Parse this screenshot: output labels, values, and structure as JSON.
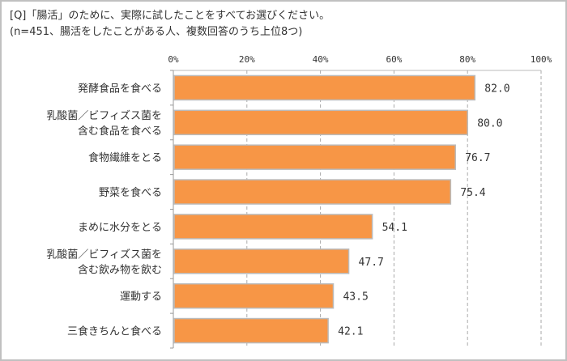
{
  "chart_data": {
    "type": "bar",
    "orientation": "horizontal",
    "title": "[Q]「腸活」のために、実際に試したことをすべてお選びください。",
    "subtitle": "(n=451、腸活をしたことがある人、複数回答のうち上位8つ)",
    "categories": [
      [
        "発酵食品を食べる"
      ],
      [
        "乳酸菌／ビフィズス菌を",
        "含む食品を食べる"
      ],
      [
        "食物繊維をとる"
      ],
      [
        "野菜を食べる"
      ],
      [
        "まめに水分をとる"
      ],
      [
        "乳酸菌／ビフィズス菌を",
        "含む飲み物を飲む"
      ],
      [
        "運動する"
      ],
      [
        "三食きちんと食べる"
      ]
    ],
    "values": [
      82.0,
      80.0,
      76.7,
      75.4,
      54.1,
      47.7,
      43.5,
      42.1
    ],
    "value_labels": [
      "82.0",
      "80.0",
      "76.7",
      "75.4",
      "54.1",
      "47.7",
      "43.5",
      "42.1"
    ],
    "xlim": [
      0,
      100
    ],
    "ticks": [
      0,
      20,
      40,
      60,
      80,
      100
    ],
    "tick_labels": [
      "0%",
      "20%",
      "40%",
      "60%",
      "80%",
      "100%"
    ],
    "axis_position": "top",
    "grid": true,
    "bar_color": "#F79646"
  }
}
